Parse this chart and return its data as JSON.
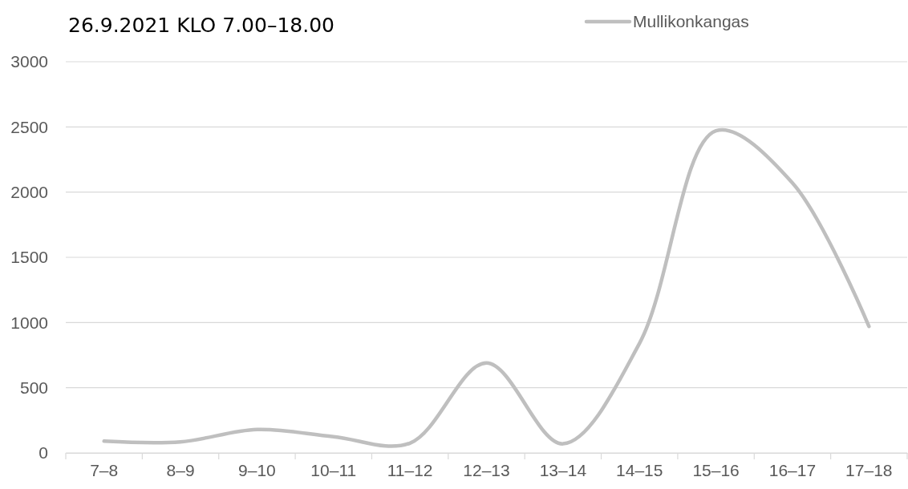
{
  "chart_data": {
    "type": "line",
    "title": "26.9.2021 KLO 7.00–18.00",
    "categories": [
      "7–8",
      "8–9",
      "9–10",
      "10–11",
      "11–12",
      "12–13",
      "13–14",
      "14–15",
      "15–16",
      "16–17",
      "17–18"
    ],
    "series": [
      {
        "name": "Mullikonkangas",
        "color": "#bfbfbf",
        "values": [
          90,
          85,
          180,
          125,
          75,
          690,
          70,
          840,
          2470,
          2070,
          970
        ]
      }
    ],
    "ylim": [
      0,
      3000
    ],
    "yticks": [
      0,
      500,
      1000,
      1500,
      2000,
      2500,
      3000
    ],
    "grid": "y",
    "legend": "top right"
  }
}
